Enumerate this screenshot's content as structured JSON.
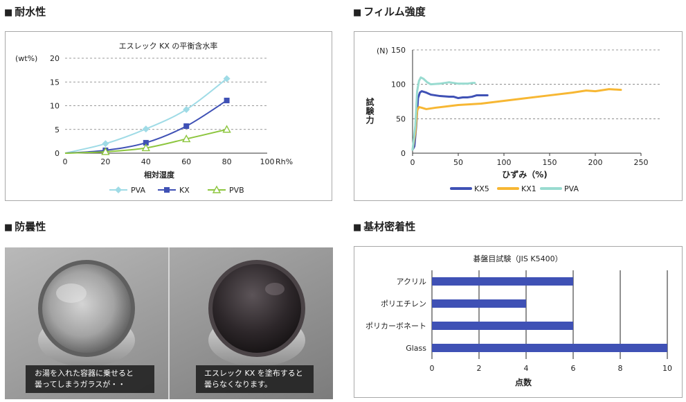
{
  "sections": {
    "water": "耐水性",
    "film": "フィルム強度",
    "fog": "防曇性",
    "adhesion": "基材密着性"
  },
  "heading_marker": "■",
  "colors": {
    "PVA_water": "#9fdbe6",
    "KX_water": "#3f51b5",
    "PVB_water": "#8dc63f",
    "KX5": "#3f51b5",
    "KX1": "#f7b733",
    "PVA_film": "#99dbd0",
    "bar": "#3f51b5"
  },
  "fog_photo": {
    "left_caption_line1": "お湯を入れた容器に乗せると",
    "left_caption_line2": "曇ってしまうガラスが・・",
    "right_caption_line1": "エスレック KX を塗布すると",
    "right_caption_line2": "曇らなくなります。"
  },
  "chart_data": [
    {
      "type": "line",
      "title": "エスレック KX の平衡含水率",
      "xlabel": "相対湿度",
      "x_unit": "Rh%",
      "ylabel": "(wt%)",
      "xlim": [
        0,
        100
      ],
      "ylim": [
        0,
        20
      ],
      "x_ticks": [
        "0",
        "20",
        "40",
        "60",
        "80",
        "100"
      ],
      "y_ticks": [
        "0",
        "5",
        "10",
        "15",
        "20"
      ],
      "grid": true,
      "legend": "bottom",
      "series": [
        {
          "name": "PVA",
          "marker": "diamond",
          "color": "#9fdbe6",
          "points": [
            [
              0,
              0
            ],
            [
              20,
              2
            ],
            [
              40,
              5.1
            ],
            [
              60,
              9.2
            ],
            [
              80,
              15.7
            ]
          ]
        },
        {
          "name": "KX",
          "marker": "square",
          "color": "#3f51b5",
          "points": [
            [
              0,
              0
            ],
            [
              20,
              0.6
            ],
            [
              40,
              2.2
            ],
            [
              60,
              5.7
            ],
            [
              80,
              11.1
            ]
          ]
        },
        {
          "name": "PVB",
          "marker": "triangle",
          "color": "#8dc63f",
          "points": [
            [
              0,
              0
            ],
            [
              20,
              0.3
            ],
            [
              40,
              1.1
            ],
            [
              60,
              3
            ],
            [
              80,
              5
            ]
          ]
        }
      ]
    },
    {
      "type": "line",
      "title": "",
      "xlabel": "ひずみ（%)",
      "ylabel": "試験力",
      "y_unit": "(N)",
      "xlim": [
        0,
        250
      ],
      "ylim": [
        0,
        150
      ],
      "x_ticks": [
        "0",
        "50",
        "100",
        "150",
        "200",
        "250"
      ],
      "y_ticks": [
        "0",
        "50",
        "100",
        "150"
      ],
      "grid": true,
      "legend": "bottom",
      "series": [
        {
          "name": "KX5",
          "color": "#3f51b5",
          "points": [
            [
              0,
              5
            ],
            [
              2,
              10
            ],
            [
              4,
              40
            ],
            [
              6,
              80
            ],
            [
              8,
              88
            ],
            [
              10,
              90
            ],
            [
              15,
              88
            ],
            [
              20,
              85
            ],
            [
              30,
              83
            ],
            [
              40,
              82
            ],
            [
              45,
              82
            ],
            [
              50,
              80
            ],
            [
              55,
              81
            ],
            [
              60,
              81
            ],
            [
              65,
              82
            ],
            [
              70,
              84
            ],
            [
              82,
              84
            ]
          ]
        },
        {
          "name": "KX1",
          "color": "#f7b733",
          "points": [
            [
              0,
              5
            ],
            [
              3,
              30
            ],
            [
              5,
              62
            ],
            [
              7,
              67
            ],
            [
              10,
              66
            ],
            [
              15,
              64
            ],
            [
              25,
              66
            ],
            [
              50,
              70
            ],
            [
              75,
              72
            ],
            [
              100,
              76
            ],
            [
              125,
              80
            ],
            [
              150,
              84
            ],
            [
              175,
              88
            ],
            [
              190,
              91
            ],
            [
              200,
              90
            ],
            [
              215,
              93
            ],
            [
              228,
              92
            ]
          ]
        },
        {
          "name": "PVA",
          "color": "#99dbd0",
          "points": [
            [
              0,
              5
            ],
            [
              3,
              40
            ],
            [
              5,
              90
            ],
            [
              7,
              105
            ],
            [
              9,
              110
            ],
            [
              12,
              108
            ],
            [
              16,
              103
            ],
            [
              20,
              100
            ],
            [
              30,
              101
            ],
            [
              40,
              103
            ],
            [
              50,
              101
            ],
            [
              55,
              101
            ],
            [
              60,
              101
            ],
            [
              65,
              102
            ],
            [
              68,
              102
            ]
          ]
        }
      ]
    },
    {
      "type": "bar",
      "orientation": "horizontal",
      "title": "碁盤目試験（JIS K5400）",
      "xlabel": "点数",
      "categories": [
        "アクリル",
        "ポリエチレン",
        "ポリカーボネート",
        "Glass"
      ],
      "values": [
        6,
        4,
        6,
        10
      ],
      "xlim": [
        0,
        10
      ],
      "x_ticks": [
        "0",
        "2",
        "4",
        "6",
        "8",
        "10"
      ],
      "grid": true
    }
  ]
}
